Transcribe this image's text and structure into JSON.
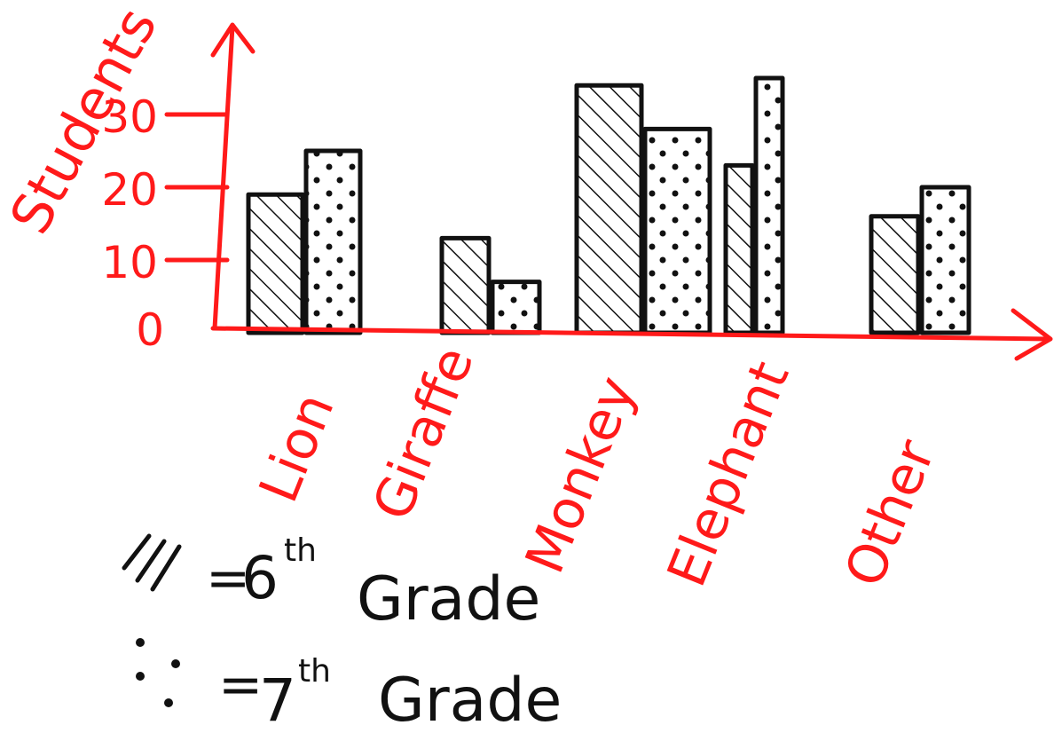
{
  "chart_data": {
    "type": "bar",
    "title": "",
    "xlabel": "",
    "ylabel": "Students",
    "ylim": [
      0,
      35
    ],
    "yticks": [
      0,
      10,
      20,
      30
    ],
    "categories": [
      "Lion",
      "Giraffe",
      "Monkey",
      "Elephant",
      "Other"
    ],
    "series": [
      {
        "name": "6th Grade",
        "values": [
          19,
          13,
          34,
          23,
          16
        ],
        "pattern": "hatch"
      },
      {
        "name": "7th Grade",
        "values": [
          25,
          7,
          28,
          35,
          20
        ],
        "pattern": "dots"
      }
    ],
    "legend": [
      {
        "symbol": "///",
        "equals": "=",
        "grade_num": "6",
        "sup": "th",
        "word": "Grade"
      },
      {
        "symbol": "dots",
        "equals": "=",
        "grade_num": "7",
        "sup": "th",
        "word": "Grade"
      }
    ],
    "legend_position": "bottom-left",
    "grid": false,
    "colors": {
      "axis": "#ff1a1a",
      "bars": "#111111"
    }
  }
}
